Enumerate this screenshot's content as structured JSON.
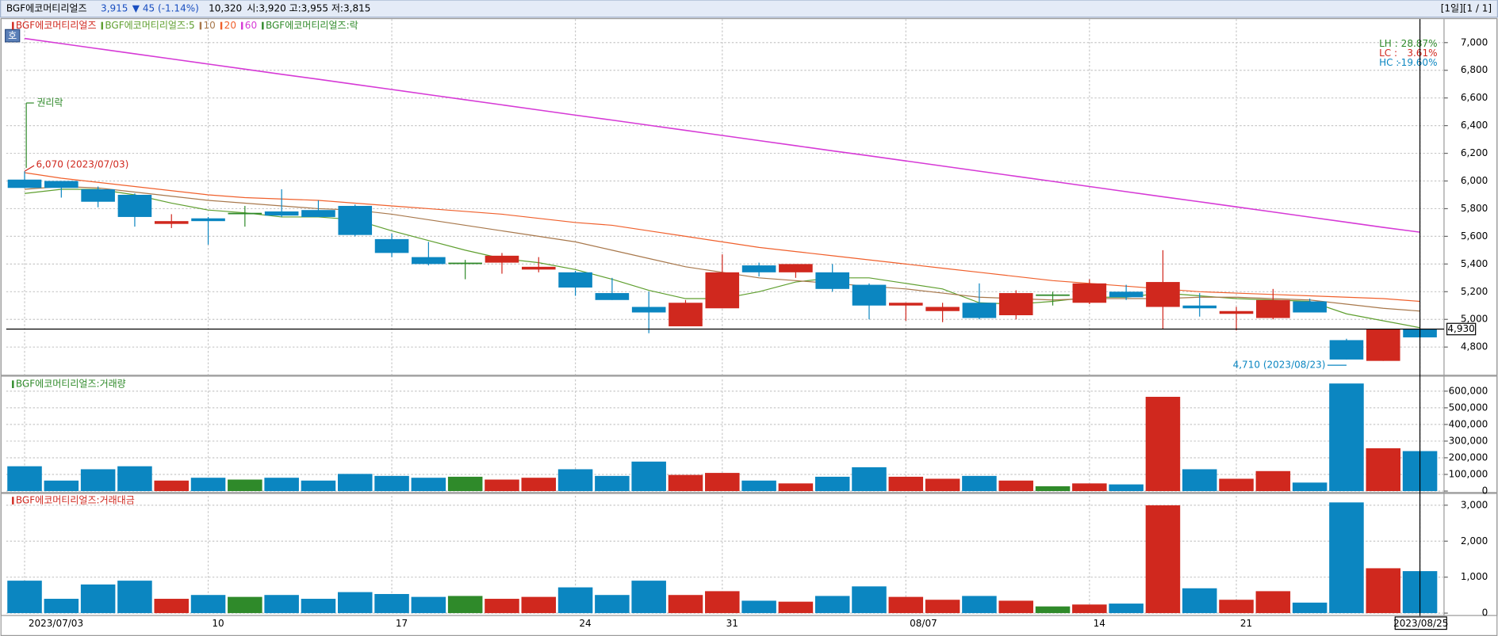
{
  "header": {
    "name": "BGF에코머티리얼즈",
    "price": "3,915",
    "change": "▼ 45 (-1.14%)",
    "volume": "10,320",
    "ohl": "시:3,920 고:3,955 저:3,815",
    "page": "[1일][1 / 1]",
    "button": "호"
  },
  "chart_data": [
    {
      "type": "candlestick",
      "name": "BGF에코머티리얼즈",
      "event_legend": "BGF에코머티리얼즈:락",
      "categories": [
        "2023/07/03",
        null,
        null,
        null,
        null,
        "10",
        null,
        null,
        null,
        null,
        "17",
        null,
        null,
        null,
        null,
        "24",
        null,
        null,
        null,
        "31",
        null,
        null,
        null,
        null,
        "08/07",
        null,
        null,
        null,
        null,
        "14",
        null,
        null,
        null,
        "21",
        null,
        null,
        null,
        null,
        "2023/08/25"
      ],
      "open": [
        6010,
        6000,
        5940,
        5900,
        5690,
        5730,
        5770,
        5780,
        5790,
        5820,
        5580,
        5450,
        5410,
        5410,
        5360,
        5340,
        5190,
        5090,
        4950,
        5080,
        5390,
        5340,
        5340,
        5250,
        5100,
        5060,
        5120,
        5030,
        5180,
        5120,
        5200,
        5090,
        5100,
        5040,
        5010,
        5130,
        4850,
        4700,
        4930
      ],
      "high": [
        6070,
        6000,
        5960,
        5910,
        5760,
        5740,
        5820,
        5940,
        5860,
        5830,
        5620,
        5560,
        5430,
        5480,
        5450,
        5350,
        5300,
        5200,
        5140,
        5470,
        5410,
        5400,
        5400,
        5260,
        5120,
        5120,
        5260,
        5210,
        5200,
        5290,
        5250,
        5500,
        5190,
        5090,
        5220,
        5150,
        4860,
        4930,
        4930
      ],
      "low": [
        5950,
        5880,
        5810,
        5670,
        5660,
        5540,
        5670,
        5740,
        5740,
        5600,
        5450,
        5390,
        5290,
        5330,
        5340,
        5170,
        5140,
        4900,
        4950,
        5080,
        5310,
        5300,
        5200,
        5000,
        4990,
        4980,
        5000,
        5000,
        5100,
        5110,
        5140,
        4930,
        5020,
        4920,
        5000,
        5050,
        4710,
        4700,
        4870
      ],
      "close": [
        5950,
        5950,
        5850,
        5740,
        5710,
        5710,
        5770,
        5750,
        5740,
        5610,
        5480,
        5400,
        5410,
        5460,
        5380,
        5230,
        5140,
        5050,
        5120,
        5340,
        5340,
        5400,
        5220,
        5100,
        5120,
        5090,
        5010,
        5190,
        5180,
        5260,
        5160,
        5270,
        5080,
        5060,
        5140,
        5050,
        4710,
        4930,
        4870
      ],
      "series": [
        {
          "name": "BGF에코머티리얼즈:5",
          "color": "#5f9f2f",
          "values": [
            5910,
            5940,
            5940,
            5900,
            5840,
            5790,
            5770,
            5740,
            5740,
            5720,
            5640,
            5570,
            5500,
            5440,
            5410,
            5360,
            5290,
            5210,
            5150,
            5150,
            5200,
            5270,
            5300,
            5300,
            5260,
            5220,
            5120,
            5110,
            5130,
            5160,
            5160,
            5190,
            5170,
            5150,
            5140,
            5130,
            5040,
            4990,
            4940
          ]
        },
        {
          "name": "10",
          "color": "#a8784c",
          "values": [
            5940,
            5960,
            5950,
            5920,
            5890,
            5860,
            5840,
            5820,
            5800,
            5790,
            5760,
            5720,
            5680,
            5640,
            5600,
            5560,
            5500,
            5440,
            5380,
            5340,
            5300,
            5280,
            5260,
            5240,
            5220,
            5190,
            5160,
            5150,
            5140,
            5150,
            5150,
            5150,
            5160,
            5160,
            5150,
            5140,
            5110,
            5080,
            5060
          ]
        },
        {
          "name": "20",
          "color": "#f0602c",
          "values": [
            6060,
            6020,
            5990,
            5960,
            5930,
            5900,
            5880,
            5870,
            5860,
            5840,
            5820,
            5800,
            5780,
            5760,
            5730,
            5700,
            5680,
            5640,
            5600,
            5560,
            5520,
            5490,
            5460,
            5430,
            5400,
            5370,
            5340,
            5310,
            5280,
            5260,
            5240,
            5220,
            5200,
            5190,
            5180,
            5170,
            5160,
            5150,
            5130
          ]
        },
        {
          "name": "60",
          "color": "#d63ad6",
          "values": [
            7030,
            6993,
            6956,
            6919,
            6882,
            6845,
            6808,
            6771,
            6735,
            6698,
            6661,
            6624,
            6587,
            6550,
            6513,
            6476,
            6440,
            6403,
            6366,
            6329,
            6292,
            6255,
            6218,
            6182,
            6145,
            6108,
            6071,
            6034,
            5997,
            5960,
            5923,
            5886,
            5850,
            5813,
            5776,
            5739,
            5702,
            5665,
            5630
          ]
        }
      ],
      "up_color": "#d0281e",
      "down_color": "#0b86c1",
      "flat_color": "#2f8a2a",
      "ylim": [
        4600,
        7170
      ],
      "yticks": [
        {
          "value": 4800,
          "label": "4,800"
        },
        {
          "value": 5000,
          "label": "5,000"
        },
        {
          "value": 5200,
          "label": "5,200"
        },
        {
          "value": 5400,
          "label": "5,400"
        },
        {
          "value": 5600,
          "label": "5,600"
        },
        {
          "value": 5800,
          "label": "5,800"
        },
        {
          "value": 6000,
          "label": "6,000"
        },
        {
          "value": 6200,
          "label": "6,200"
        },
        {
          "value": 6400,
          "label": "6,400"
        },
        {
          "value": 6600,
          "label": "6,600"
        },
        {
          "value": 6800,
          "label": "6,800"
        },
        {
          "value": 7000,
          "label": "7,000"
        }
      ],
      "last_price": {
        "value": 4930,
        "label": "4,930"
      },
      "annotations": [
        {
          "text": "권리락",
          "index": 0
        },
        {
          "text": "6,070 (2023/07/03)",
          "index": 0,
          "value": 6070
        },
        {
          "text": "4,710 (2023/08/23)",
          "index": 36,
          "value": 4710
        }
      ],
      "stats": [
        {
          "label": "LH :",
          "value": "28.87%"
        },
        {
          "label": "LC :",
          "value": "3.61%"
        },
        {
          "label": "HC :",
          "value": "-19.60%"
        }
      ]
    },
    {
      "type": "bar",
      "title": "BGF에코머티리얼즈:거래량",
      "values": [
        149000,
        63000,
        131000,
        149000,
        63000,
        80000,
        69000,
        80000,
        63000,
        103000,
        91000,
        80000,
        86000,
        69000,
        80000,
        131000,
        91000,
        177000,
        97000,
        109000,
        63000,
        46000,
        86000,
        143000,
        86000,
        74000,
        91000,
        63000,
        29000,
        46000,
        40000,
        566000,
        131000,
        74000,
        120000,
        51000,
        646000,
        257000,
        240000
      ],
      "ylim": [
        0,
        670000
      ],
      "yticks": [
        0,
        {
          "value": 100000,
          "label": "100,000"
        },
        {
          "value": 200000,
          "label": "200,000"
        },
        {
          "value": 300000,
          "label": "300,000"
        },
        {
          "value": 400000,
          "label": "400,000"
        },
        {
          "value": 500000,
          "label": "500,000"
        },
        {
          "value": 600000,
          "label": "600,000"
        }
      ]
    },
    {
      "type": "bar",
      "title": "BGF에코머티리얼즈:거래대금",
      "values": [
        902,
        398,
        796,
        902,
        398,
        504,
        451,
        504,
        398,
        584,
        531,
        451,
        477,
        398,
        451,
        716,
        504,
        902,
        504,
        610,
        345,
        318,
        477,
        743,
        451,
        371,
        477,
        345,
        186,
        239,
        265,
        2997,
        690,
        371,
        610,
        292,
        3077,
        1247,
        1167
      ],
      "ylim": [
        0,
        3260
      ],
      "yticks": [
        0,
        {
          "value": 1000,
          "label": "1,000"
        },
        {
          "value": 2000,
          "label": "2,000"
        },
        {
          "value": 3000,
          "label": "3,000"
        }
      ]
    }
  ]
}
